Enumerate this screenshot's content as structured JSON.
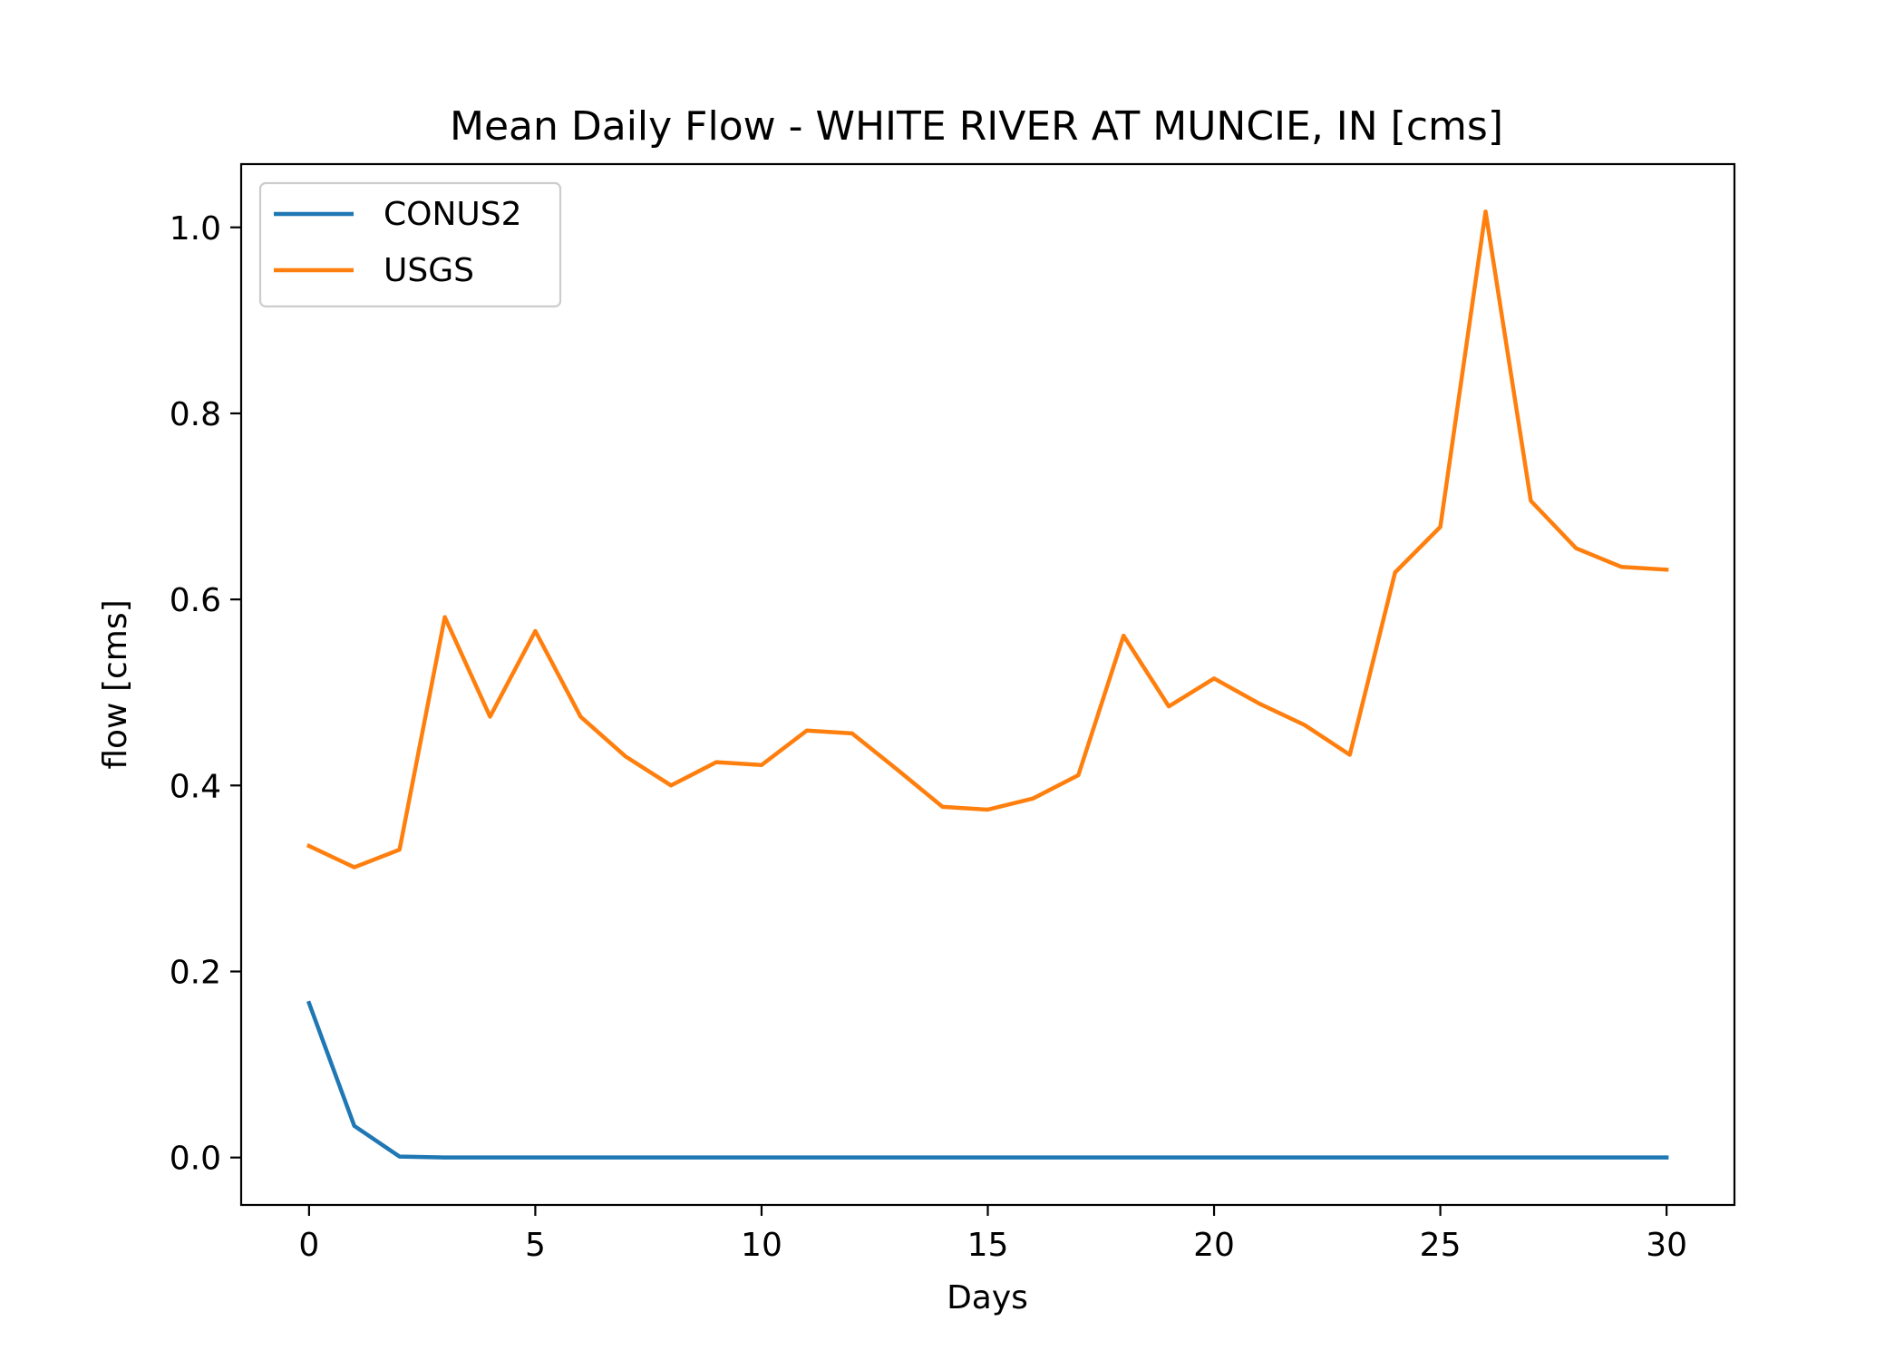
{
  "chart_data": {
    "type": "line",
    "title": "Mean Daily Flow - WHITE RIVER AT MUNCIE, IN [cms]",
    "xlabel": "Days",
    "ylabel": "flow [cms]",
    "xlim": [
      -1.5,
      31.5
    ],
    "ylim": [
      -0.051,
      1.068
    ],
    "xticks": [
      0,
      5,
      10,
      15,
      20,
      25,
      30
    ],
    "xtick_labels": [
      "0",
      "5",
      "10",
      "15",
      "20",
      "25",
      "30"
    ],
    "yticks": [
      0.0,
      0.2,
      0.4,
      0.6,
      0.8,
      1.0
    ],
    "ytick_labels": [
      "0.0",
      "0.2",
      "0.4",
      "0.6",
      "0.8",
      "1.0"
    ],
    "grid": false,
    "legend_position": "upper-left",
    "x": [
      0,
      1,
      2,
      3,
      4,
      5,
      6,
      7,
      8,
      9,
      10,
      11,
      12,
      13,
      14,
      15,
      16,
      17,
      18,
      19,
      20,
      21,
      22,
      23,
      24,
      25,
      26,
      27,
      28,
      29,
      30
    ],
    "series": [
      {
        "name": "CONUS2",
        "color": "#1f77b4",
        "values": [
          0.166,
          0.034,
          0.001,
          0.0,
          0.0,
          0.0,
          0.0,
          0.0,
          0.0,
          0.0,
          0.0,
          0.0,
          0.0,
          0.0,
          0.0,
          0.0,
          0.0,
          0.0,
          0.0,
          0.0,
          0.0,
          0.0,
          0.0,
          0.0,
          0.0,
          0.0,
          0.0,
          0.0,
          0.0,
          0.0,
          0.0
        ]
      },
      {
        "name": "USGS",
        "color": "#ff7f0e",
        "values": [
          0.335,
          0.312,
          0.331,
          0.581,
          0.474,
          0.566,
          0.474,
          0.431,
          0.4,
          0.425,
          0.422,
          0.459,
          0.456,
          0.417,
          0.377,
          0.374,
          0.386,
          0.411,
          0.561,
          0.485,
          0.515,
          0.488,
          0.465,
          0.433,
          0.629,
          0.678,
          1.017,
          0.706,
          0.655,
          0.635,
          0.632
        ]
      }
    ]
  }
}
